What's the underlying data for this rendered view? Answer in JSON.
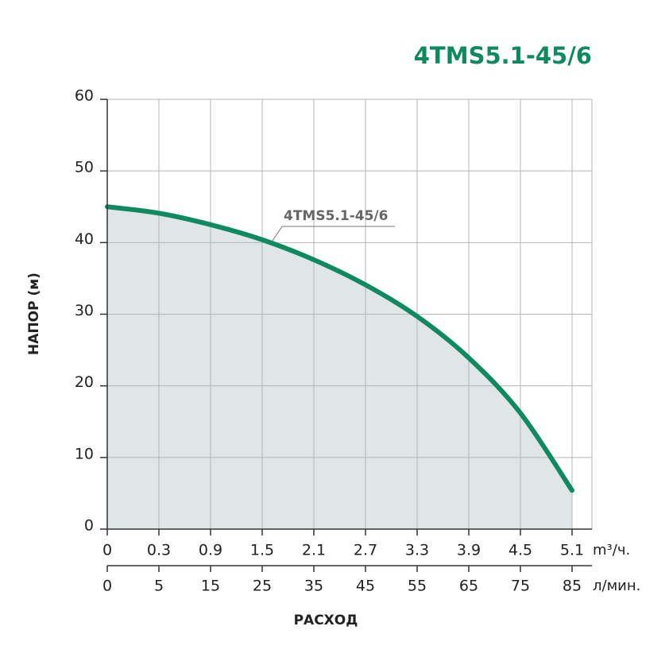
{
  "chart_data": {
    "type": "line",
    "title": "4TMS5.1-45/6",
    "y_label": "НАПОР (м)",
    "x_label": "РАСХОД",
    "x_unit": "m³/ч.",
    "x2_unit": "л/мин.",
    "categories": [
      "0",
      "0.3",
      "0.9",
      "1.5",
      "2.1",
      "2.7",
      "3.3",
      "3.9",
      "4.5",
      "5.1"
    ],
    "categories2": [
      "0",
      "5",
      "15",
      "25",
      "35",
      "45",
      "55",
      "65",
      "75",
      "85"
    ],
    "series": [
      {
        "name": "4TMS5.1-45/6",
        "color": "#0f8a5f",
        "fill": "#dde2e5",
        "values": [
          45.0,
          44.1,
          42.5,
          40.4,
          37.6,
          34.1,
          29.7,
          23.9,
          16.2,
          5.4
        ]
      }
    ],
    "ylim": [
      0,
      60
    ],
    "yticks": [
      0,
      10,
      20,
      30,
      40,
      50,
      60
    ],
    "grid": true
  }
}
